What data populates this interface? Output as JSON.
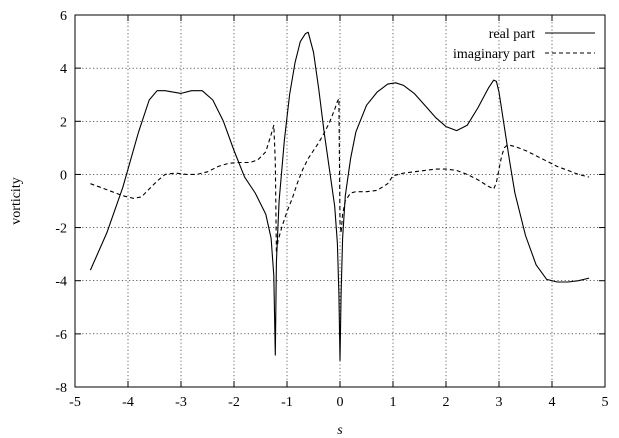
{
  "chart_data": {
    "type": "line",
    "title": "",
    "xlabel": "s",
    "ylabel": "vorticity",
    "xlim": [
      -5,
      5
    ],
    "ylim": [
      -8,
      6
    ],
    "xticks": [
      -5,
      -4,
      -3,
      -2,
      -1,
      0,
      1,
      2,
      3,
      4,
      5
    ],
    "yticks": [
      -8,
      -6,
      -4,
      -2,
      0,
      2,
      4,
      6
    ],
    "grid": true,
    "legend_position": "top-right",
    "series": [
      {
        "name": "real part",
        "line_style": "solid",
        "x": [
          -4.71,
          -4.4,
          -4.1,
          -3.8,
          -3.6,
          -3.45,
          -3.3,
          -3.0,
          -2.8,
          -2.6,
          -2.4,
          -2.2,
          -2.0,
          -1.8,
          -1.6,
          -1.4,
          -1.3,
          -1.25,
          -1.22,
          -1.2,
          -1.15,
          -1.05,
          -0.95,
          -0.85,
          -0.75,
          -0.65,
          -0.6,
          -0.5,
          -0.4,
          -0.3,
          -0.2,
          -0.1,
          -0.05,
          -0.02,
          0.0,
          0.02,
          0.05,
          0.1,
          0.2,
          0.3,
          0.5,
          0.7,
          0.9,
          1.05,
          1.2,
          1.4,
          1.6,
          1.8,
          2.0,
          2.2,
          2.4,
          2.6,
          2.8,
          2.9,
          2.95,
          3.0,
          3.1,
          3.2,
          3.3,
          3.5,
          3.7,
          3.9,
          4.1,
          4.3,
          4.5,
          4.7
        ],
        "y": [
          -3.6,
          -2.2,
          -0.5,
          1.6,
          2.8,
          3.15,
          3.15,
          3.05,
          3.15,
          3.15,
          2.8,
          2.0,
          0.9,
          -0.1,
          -0.7,
          -1.5,
          -2.4,
          -3.8,
          -6.8,
          -3.3,
          -1.0,
          1.3,
          3.0,
          4.2,
          5.0,
          5.3,
          5.35,
          4.6,
          3.2,
          1.6,
          0.2,
          -1.2,
          -2.6,
          -4.5,
          -7.0,
          -4.5,
          -2.4,
          -0.8,
          0.6,
          1.6,
          2.6,
          3.1,
          3.4,
          3.45,
          3.35,
          3.05,
          2.6,
          2.15,
          1.8,
          1.65,
          1.85,
          2.5,
          3.25,
          3.55,
          3.5,
          3.1,
          1.8,
          0.5,
          -0.7,
          -2.3,
          -3.4,
          -3.95,
          -4.05,
          -4.05,
          -4.0,
          -3.9
        ]
      },
      {
        "name": "imaginary part",
        "line_style": "dashed",
        "x": [
          -4.71,
          -4.5,
          -4.3,
          -4.1,
          -3.9,
          -3.75,
          -3.6,
          -3.45,
          -3.3,
          -3.1,
          -2.9,
          -2.7,
          -2.5,
          -2.3,
          -2.1,
          -1.9,
          -1.7,
          -1.55,
          -1.4,
          -1.3,
          -1.25,
          -1.22,
          -1.2,
          -1.17,
          -1.1,
          -1.0,
          -0.9,
          -0.8,
          -0.7,
          -0.6,
          -0.5,
          -0.4,
          -0.3,
          -0.2,
          -0.1,
          -0.05,
          -0.02,
          0.0,
          0.02,
          0.05,
          0.1,
          0.2,
          0.3,
          0.5,
          0.7,
          0.9,
          1.0,
          1.2,
          1.4,
          1.6,
          1.8,
          2.0,
          2.2,
          2.4,
          2.6,
          2.8,
          2.9,
          2.95,
          3.0,
          3.05,
          3.1,
          3.15,
          3.2,
          3.3,
          3.5,
          3.7,
          3.9,
          4.1,
          4.3,
          4.5,
          4.7
        ],
        "y": [
          -0.35,
          -0.5,
          -0.65,
          -0.8,
          -0.9,
          -0.85,
          -0.55,
          -0.25,
          0.0,
          0.05,
          0.0,
          0.0,
          0.1,
          0.3,
          0.42,
          0.45,
          0.45,
          0.55,
          0.85,
          1.5,
          1.85,
          0.5,
          -2.95,
          -2.5,
          -2.0,
          -1.4,
          -0.9,
          -0.3,
          0.2,
          0.6,
          0.9,
          1.2,
          1.55,
          1.95,
          2.45,
          2.75,
          2.85,
          -1.8,
          -2.2,
          -1.5,
          -1.0,
          -0.7,
          -0.65,
          -0.65,
          -0.6,
          -0.35,
          -0.05,
          0.05,
          0.1,
          0.15,
          0.2,
          0.2,
          0.15,
          0.0,
          -0.2,
          -0.45,
          -0.55,
          -0.3,
          0.2,
          0.7,
          1.0,
          1.1,
          1.1,
          1.05,
          0.9,
          0.7,
          0.5,
          0.3,
          0.15,
          0.0,
          -0.1
        ]
      }
    ]
  }
}
